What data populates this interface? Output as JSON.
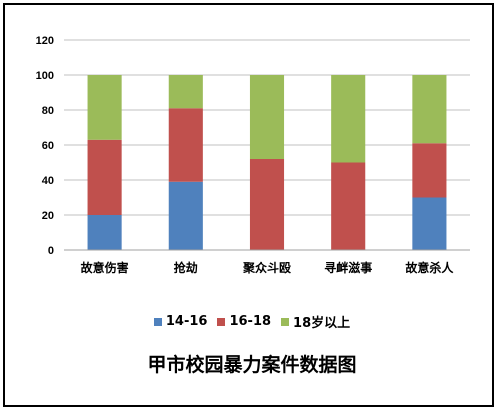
{
  "chart_data": {
    "type": "bar",
    "stacked": true,
    "title": "甲市校园暴力案件数据图",
    "categories": [
      "故意伤害",
      "抢劫",
      "聚众斗殴",
      "寻衅滋事",
      "故意杀人"
    ],
    "series": [
      {
        "name": "14-16",
        "color": "#4F81BD",
        "values": [
          20,
          39,
          0,
          0,
          30
        ]
      },
      {
        "name": "16-18",
        "color": "#C0504D",
        "values": [
          43,
          42,
          52,
          50,
          31
        ]
      },
      {
        "name": "18岁以上",
        "color": "#9BBB59",
        "values": [
          37,
          19,
          48,
          50,
          39
        ]
      }
    ],
    "ylim": [
      0,
      120
    ],
    "yticks": [
      "0",
      "20",
      "40",
      "60",
      "80",
      "100",
      "120"
    ],
    "grid": true,
    "legend_position": "bottom"
  }
}
